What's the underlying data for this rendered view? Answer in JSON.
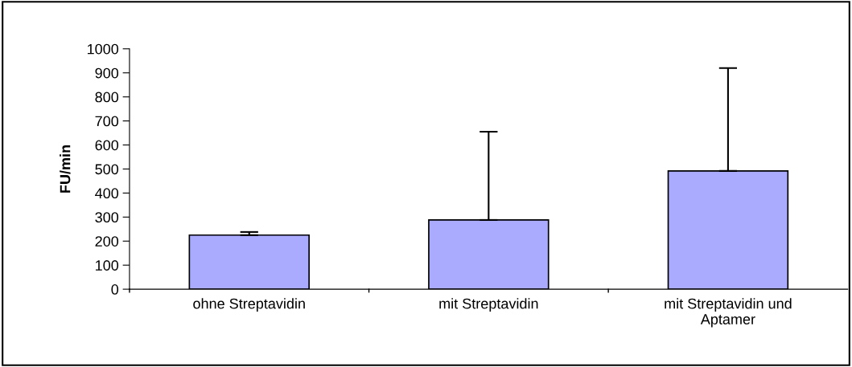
{
  "chart_data": {
    "type": "bar",
    "ylabel": "FU/min",
    "categories": [
      "ohne Streptavidin",
      "mit Streptavidin",
      "mit Streptavidin und\nAptamer"
    ],
    "values": [
      225,
      288,
      492
    ],
    "errors": [
      [
        225,
        238
      ],
      [
        288,
        655
      ],
      [
        492,
        920
      ]
    ],
    "color": "#aaaaff",
    "ylim": [
      0,
      1000
    ],
    "yticks": [
      0,
      100,
      200,
      300,
      400,
      500,
      600,
      700,
      800,
      900,
      1000
    ],
    "grid": false,
    "legend": false
  }
}
